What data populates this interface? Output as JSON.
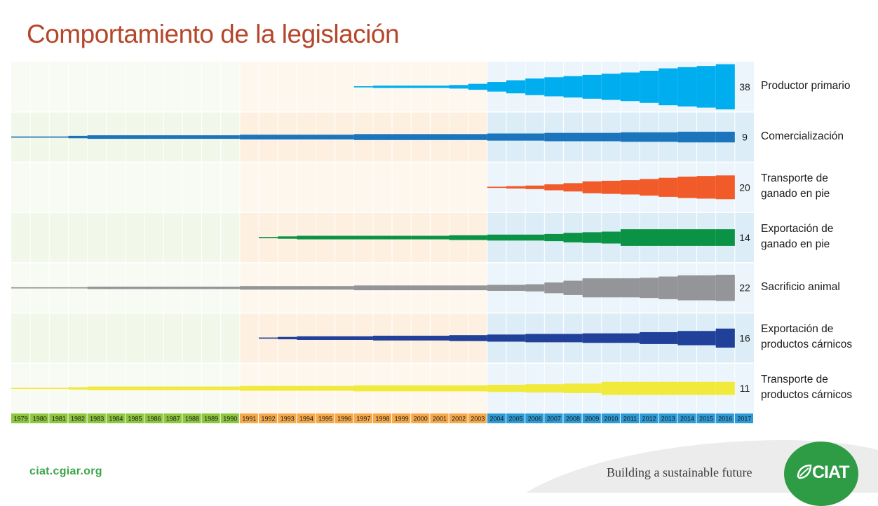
{
  "title": "Comportamiento de la legislación",
  "footer": {
    "url": "ciat.cgiar.org",
    "tagline": "Building a sustainable future",
    "logo": "CIAT"
  },
  "chart_data": {
    "type": "area",
    "title": "Comportamiento de la legislación",
    "x_categories": [
      "1979",
      "1980",
      "1981",
      "1982",
      "1983",
      "1984",
      "1985",
      "1986",
      "1987",
      "1988",
      "1989",
      "1990",
      "1991",
      "1992",
      "1993",
      "1994",
      "1995",
      "1996",
      "1997",
      "1998",
      "1999",
      "2000",
      "2001",
      "2002",
      "2003",
      "2004",
      "2005",
      "2006",
      "2007",
      "2008",
      "2009",
      "2010",
      "2011",
      "2012",
      "2013",
      "2014",
      "2015",
      "2016",
      "2017"
    ],
    "periods": [
      {
        "from": "1979",
        "to": "1990",
        "color": "#8dc63f",
        "bg": "#f2f8e9"
      },
      {
        "from": "1991",
        "to": "2003",
        "color": "#f5a94a",
        "bg": "#fdf0e0"
      },
      {
        "from": "2004",
        "to": "2017",
        "color": "#2e9bd6",
        "bg": "#dcedf8"
      }
    ],
    "series": [
      {
        "name": "Productor primario",
        "total": 38,
        "color": "#00aeef",
        "x": [
          1997,
          1998,
          2002,
          2003,
          2004,
          2005,
          2006,
          2007,
          2008,
          2009,
          2010,
          2011,
          2012,
          2013,
          2014,
          2015,
          2016
        ],
        "y": [
          1,
          2,
          3,
          5,
          8,
          11,
          14,
          16,
          18,
          20,
          22,
          24,
          27,
          31,
          33,
          35,
          38
        ]
      },
      {
        "name": "Comercialización",
        "total": 9,
        "color": "#1b75bc",
        "x": [
          1979,
          1982,
          1983,
          1991,
          1997,
          2004,
          2007,
          2011,
          2014,
          2016
        ],
        "y": [
          1,
          2,
          3,
          4,
          5,
          6,
          7,
          8,
          9,
          9
        ]
      },
      {
        "name": "Transporte de ganado en pie",
        "total": 20,
        "color": "#f15a29",
        "x": [
          2004,
          2005,
          2006,
          2007,
          2008,
          2009,
          2010,
          2011,
          2012,
          2013,
          2014,
          2015,
          2016
        ],
        "y": [
          1,
          2,
          3,
          5,
          7,
          10,
          11,
          12,
          14,
          16,
          18,
          19,
          20
        ]
      },
      {
        "name": "Exportación de ganado en pie",
        "total": 14,
        "color": "#0a9245",
        "x": [
          1992,
          1993,
          1994,
          2000,
          2002,
          2004,
          2007,
          2008,
          2009,
          2010,
          2011,
          2016
        ],
        "y": [
          1,
          2,
          3,
          3,
          4,
          5,
          6,
          8,
          9,
          10,
          14,
          14
        ]
      },
      {
        "name": "Sacrificio animal",
        "total": 22,
        "color": "#939598",
        "x": [
          1979,
          1982,
          1983,
          1991,
          1997,
          2004,
          2006,
          2007,
          2008,
          2009,
          2012,
          2013,
          2014,
          2016
        ],
        "y": [
          1,
          1,
          2,
          3,
          4,
          5,
          6,
          9,
          12,
          16,
          17,
          19,
          21,
          22
        ]
      },
      {
        "name": "Exportación de productos cárnicos",
        "total": 16,
        "color": "#21409a",
        "x": [
          1992,
          1993,
          1994,
          1998,
          2002,
          2004,
          2006,
          2009,
          2012,
          2014,
          2016
        ],
        "y": [
          1,
          2,
          3,
          4,
          5,
          6,
          7,
          8,
          10,
          12,
          16
        ]
      },
      {
        "name": "Transporte de productos cárnicos",
        "total": 11,
        "color": "#f2ea3a",
        "x": [
          1979,
          1982,
          1983,
          1991,
          1997,
          2004,
          2006,
          2008,
          2010,
          2016
        ],
        "y": [
          1,
          2,
          3,
          4,
          5,
          6,
          7,
          8,
          11,
          11
        ]
      }
    ],
    "row_labels": [
      [
        "Productor primario"
      ],
      [
        "Comercialización"
      ],
      [
        "Transporte de",
        "ganado en pie"
      ],
      [
        "Exportación de",
        "ganado en pie"
      ],
      [
        "Sacrificio animal"
      ],
      [
        "Exportación de",
        "productos cárnicos"
      ],
      [
        "Transporte de",
        "productos cárnicos"
      ]
    ]
  }
}
